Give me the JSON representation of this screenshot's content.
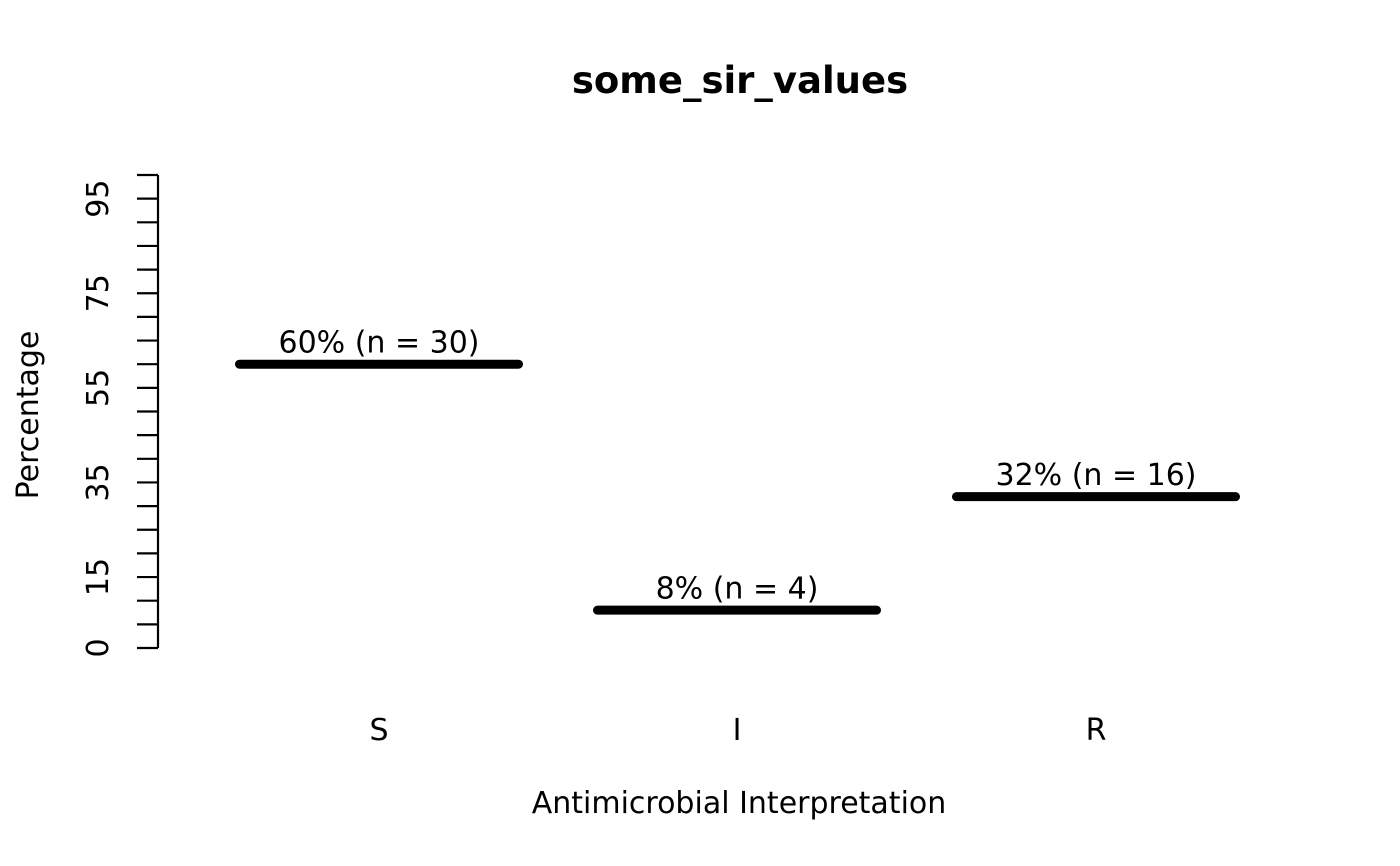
{
  "chart_data": {
    "type": "bar",
    "title": "some_sir_values",
    "xlabel": "Antimicrobial Interpretation",
    "ylabel": "Percentage",
    "categories": [
      "S",
      "I",
      "R"
    ],
    "values": [
      60,
      8,
      32
    ],
    "counts": [
      30,
      4,
      16
    ],
    "point_labels": [
      "60% (n = 30)",
      "8% (n = 4)",
      "32% (n = 16)"
    ],
    "ylim": [
      0,
      100
    ],
    "y_tick_step": 5,
    "y_tick_label_values": [
      0,
      15,
      35,
      55,
      75,
      95
    ],
    "y_tick_labels": [
      "0",
      "15",
      "35",
      "55",
      "75",
      "95"
    ],
    "grid": false,
    "legend": null,
    "bar_color": "#000000",
    "axis_color": "#000000",
    "text_color": "#000000",
    "background_color": "#ffffff"
  }
}
